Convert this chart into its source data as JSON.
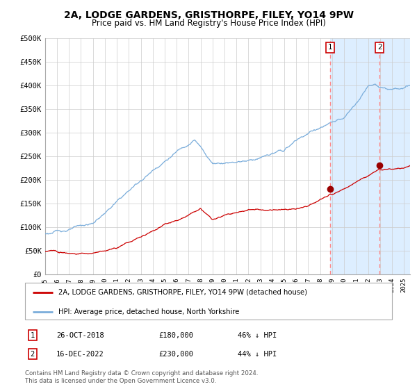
{
  "title": "2A, LODGE GARDENS, GRISTHORPE, FILEY, YO14 9PW",
  "subtitle": "Price paid vs. HM Land Registry's House Price Index (HPI)",
  "title_fontsize": 10,
  "subtitle_fontsize": 8.5,
  "ylabel_ticks": [
    "£0",
    "£50K",
    "£100K",
    "£150K",
    "£200K",
    "£250K",
    "£300K",
    "£350K",
    "£400K",
    "£450K",
    "£500K"
  ],
  "ytick_vals": [
    0,
    50000,
    100000,
    150000,
    200000,
    250000,
    300000,
    350000,
    400000,
    450000,
    500000
  ],
  "ylim": [
    0,
    500000
  ],
  "xlim_start": 1995.0,
  "xlim_end": 2025.5,
  "marker1_x": 2018.82,
  "marker1_y": 180000,
  "marker2_x": 2022.96,
  "marker2_y": 230000,
  "vline1_x": 2018.82,
  "vline2_x": 2022.96,
  "highlight_start": 2018.82,
  "highlight_end": 2025.5,
  "highlight_color": "#ddeeff",
  "red_line_color": "#cc0000",
  "blue_line_color": "#7aaddb",
  "marker_color": "#990000",
  "vline_color": "#ff8888",
  "grid_color": "#cccccc",
  "background_color": "#ffffff",
  "legend1_label": "2A, LODGE GARDENS, GRISTHORPE, FILEY, YO14 9PW (detached house)",
  "legend2_label": "HPI: Average price, detached house, North Yorkshire",
  "table_row1": [
    "1",
    "26-OCT-2018",
    "£180,000",
    "46% ↓ HPI"
  ],
  "table_row2": [
    "2",
    "16-DEC-2022",
    "£230,000",
    "44% ↓ HPI"
  ],
  "footnote": "Contains HM Land Registry data © Crown copyright and database right 2024.\nThis data is licensed under the Open Government Licence v3.0."
}
